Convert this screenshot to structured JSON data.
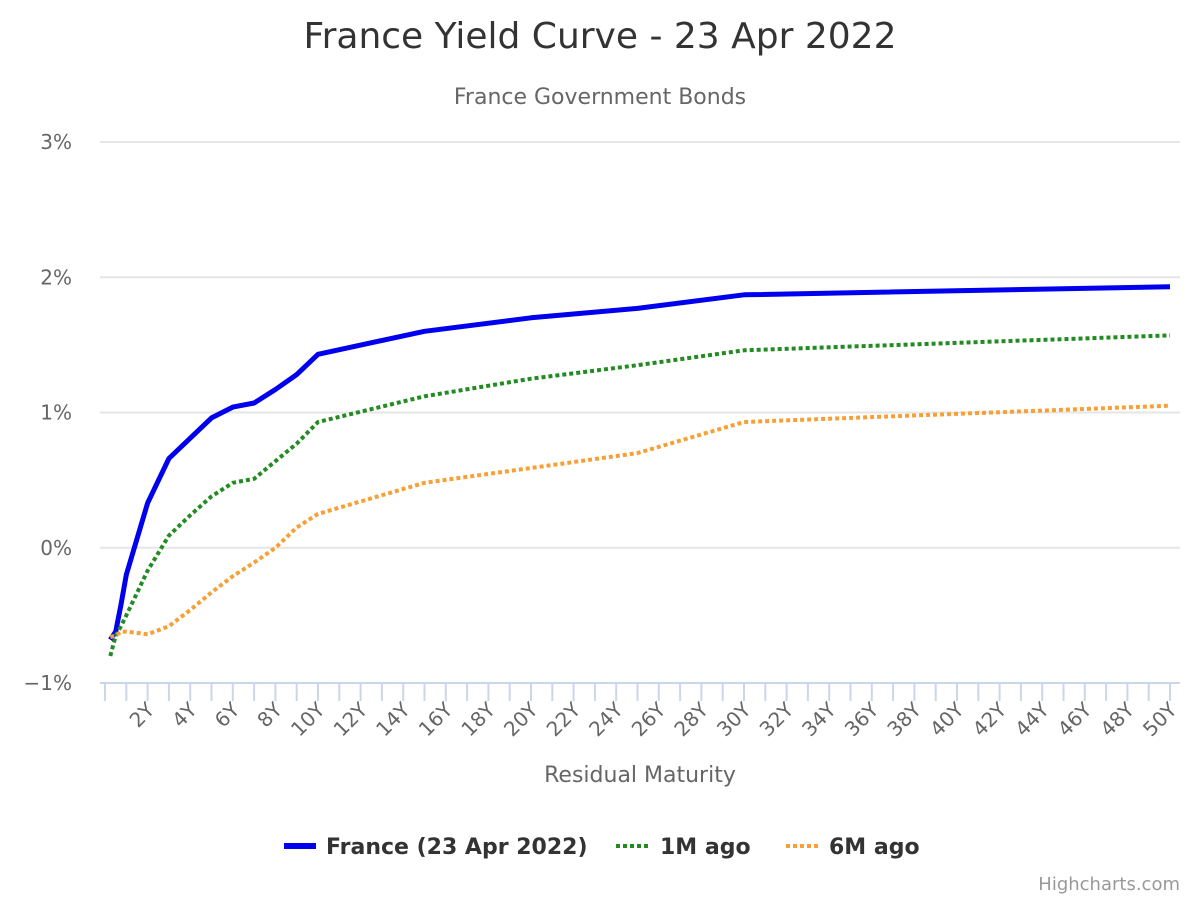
{
  "chart_data": {
    "type": "line",
    "title": "France Yield Curve - 23 Apr 2022",
    "subtitle": "France Government Bonds",
    "xlabel": "Residual Maturity",
    "ylabel": "",
    "x_unit": "years",
    "xlim": [
      0,
      50
    ],
    "ylim": [
      -1,
      3
    ],
    "y_tick_labels": [
      "3%",
      "2%",
      "1%",
      "0%",
      "−1%"
    ],
    "y_tick_values": [
      3,
      2,
      1,
      0,
      -1
    ],
    "x_tick_labels": [
      "2Y",
      "4Y",
      "6Y",
      "8Y",
      "10Y",
      "12Y",
      "14Y",
      "16Y",
      "18Y",
      "20Y",
      "22Y",
      "24Y",
      "26Y",
      "28Y",
      "30Y",
      "32Y",
      "34Y",
      "36Y",
      "38Y",
      "40Y",
      "42Y",
      "44Y",
      "46Y",
      "48Y",
      "50Y"
    ],
    "x_tick_values": [
      2,
      4,
      6,
      8,
      10,
      12,
      14,
      16,
      18,
      20,
      22,
      24,
      26,
      28,
      30,
      32,
      34,
      36,
      38,
      40,
      42,
      44,
      46,
      48,
      50
    ],
    "grid": true,
    "legend_position": "bottom-center",
    "series": [
      {
        "name": "France (23 Apr 2022)",
        "color": "#0000ee",
        "dash": "solid",
        "x": [
          0.25,
          0.5,
          0.75,
          1,
          2,
          3,
          4,
          5,
          6,
          7,
          8,
          9,
          10,
          15,
          20,
          25,
          30,
          50
        ],
        "y": [
          -0.68,
          -0.62,
          -0.42,
          -0.2,
          0.33,
          0.66,
          0.81,
          0.96,
          1.04,
          1.07,
          1.17,
          1.28,
          1.43,
          1.6,
          1.7,
          1.77,
          1.87,
          1.93
        ]
      },
      {
        "name": "1M ago",
        "color": "#228b22",
        "dash": "dotted",
        "x": [
          0.25,
          0.5,
          0.75,
          1,
          2,
          3,
          4,
          5,
          6,
          7,
          8,
          9,
          10,
          15,
          20,
          25,
          30,
          50
        ],
        "y": [
          -0.8,
          -0.65,
          -0.58,
          -0.5,
          -0.17,
          0.09,
          0.24,
          0.38,
          0.48,
          0.51,
          0.64,
          0.77,
          0.93,
          1.12,
          1.25,
          1.35,
          1.46,
          1.57
        ]
      },
      {
        "name": "6M ago",
        "color": "#f7a035",
        "dash": "dotted",
        "x": [
          0.25,
          0.5,
          0.75,
          1,
          2,
          3,
          4,
          5,
          6,
          7,
          8,
          9,
          10,
          15,
          20,
          25,
          30,
          50
        ],
        "y": [
          -0.66,
          -0.65,
          -0.62,
          -0.62,
          -0.64,
          -0.58,
          -0.46,
          -0.33,
          -0.21,
          -0.11,
          0.0,
          0.15,
          0.25,
          0.48,
          0.59,
          0.7,
          0.93,
          1.05
        ]
      }
    ]
  },
  "credits": "Highcharts.com"
}
